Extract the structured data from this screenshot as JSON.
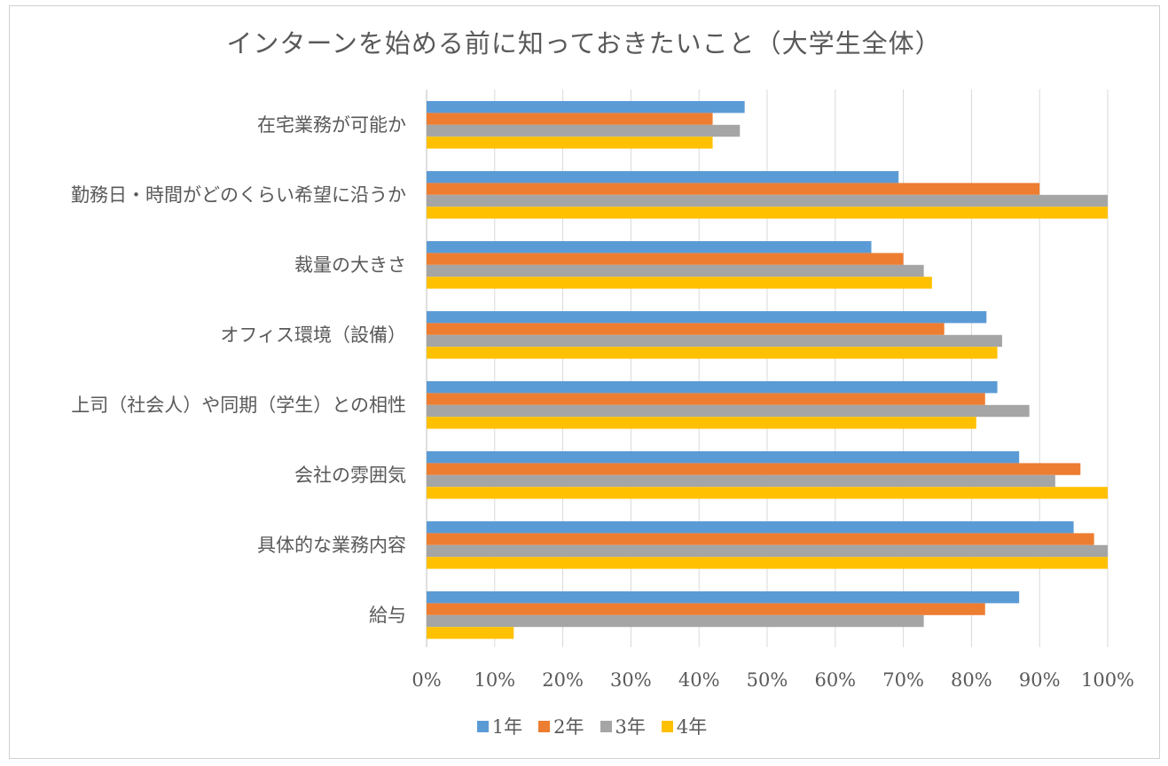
{
  "chart_data": {
    "type": "bar",
    "orientation": "horizontal",
    "title": "インターンを始める前に知っておきたいこと（大学生全体）",
    "categories": [
      "在宅業務が可能か",
      "勤務日・時間がどのくらい希望に沿うか",
      "裁量の大きさ",
      "オフィス環境（設備）",
      "上司（社会人）や同期（学生）との相性",
      "会社の雰囲気",
      "具体的な業務内容",
      "給与"
    ],
    "series": [
      {
        "name": "1年",
        "color": "#5B9BD5",
        "values": [
          0.467,
          0.693,
          0.653,
          0.822,
          0.838,
          0.87,
          0.95,
          0.87
        ]
      },
      {
        "name": "2年",
        "color": "#ED7D31",
        "values": [
          0.42,
          0.9,
          0.7,
          0.76,
          0.82,
          0.96,
          0.98,
          0.82
        ]
      },
      {
        "name": "3年",
        "color": "#A5A5A5",
        "values": [
          0.46,
          1.0,
          0.73,
          0.845,
          0.885,
          0.923,
          1.0,
          0.73
        ]
      },
      {
        "name": "4年",
        "color": "#FFC000",
        "values": [
          0.42,
          1.0,
          0.742,
          0.838,
          0.807,
          1.0,
          1.0,
          0.128
        ]
      }
    ],
    "xlim": [
      0,
      1
    ],
    "xticks": [
      "0%",
      "10%",
      "20%",
      "30%",
      "40%",
      "50%",
      "60%",
      "70%",
      "80%",
      "90%",
      "100%"
    ],
    "grid": true,
    "legend": "bottom"
  }
}
